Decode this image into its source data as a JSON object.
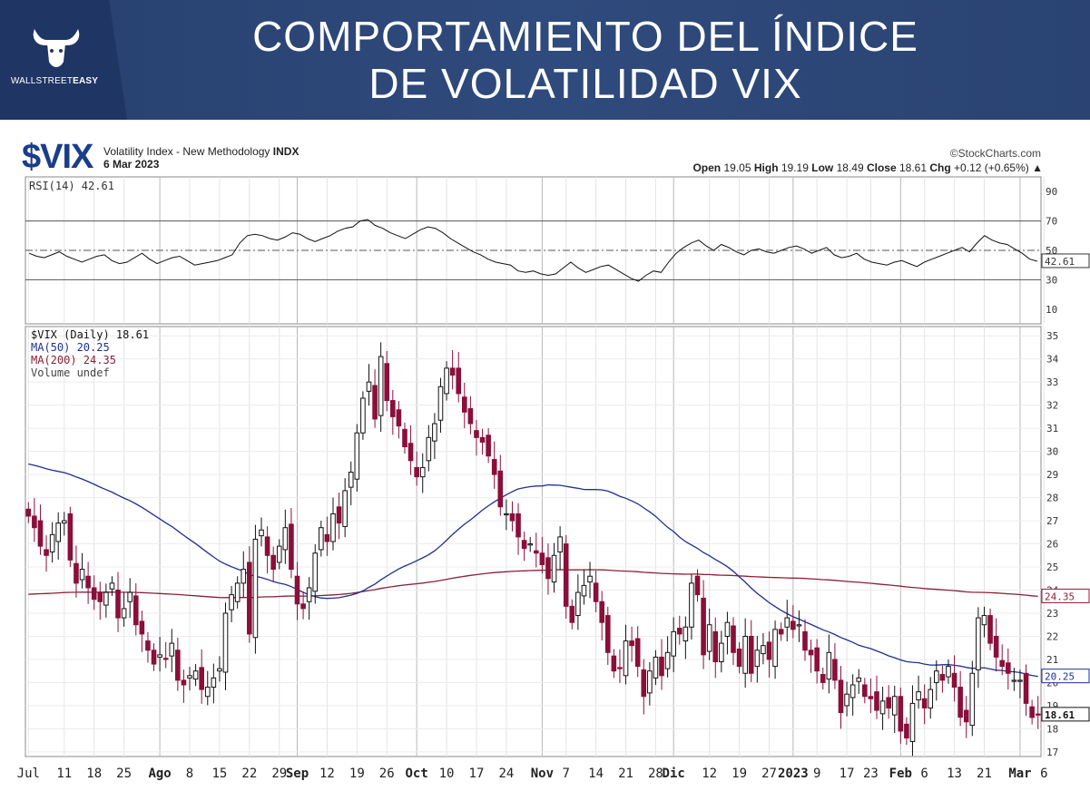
{
  "header": {
    "brand_prefix": "WALLSTREET",
    "brand_suffix": "EASY",
    "title_line1": "COMPORTAMIENTO DEL ÍNDICE",
    "title_line2": "DE VOLATILIDAD VIX"
  },
  "chart_header": {
    "symbol": "$VIX",
    "description": "Volatility Index - New Methodology",
    "exchange": "INDX",
    "date": "6 Mar 2023",
    "credit": "©StockCharts.com",
    "open_label": "Open",
    "open": "19.05",
    "high_label": "High",
    "high": "19.19",
    "low_label": "Low",
    "low": "18.49",
    "close_label": "Close",
    "close": "18.61",
    "chg_label": "Chg",
    "chg": "+0.12 (+0.65%)"
  },
  "colors": {
    "up": "#ffffff",
    "down": "#8a0f3a",
    "ma50": "#1f2f8f",
    "ma200": "#8a1f3a",
    "banner": "#2f4a7c",
    "symbol": "#1a3d8c"
  },
  "chart_data": [
    {
      "type": "line",
      "title": "RSI(14) 42.61",
      "ylim": [
        0,
        100
      ],
      "y_ticks": [
        10,
        30,
        50,
        70,
        90
      ],
      "reference_lines": [
        30,
        50,
        70
      ],
      "last_value_label": "42.61",
      "series": [
        {
          "name": "RSI(14)",
          "values": [
            48,
            46,
            45,
            47,
            49,
            46,
            44,
            42,
            44,
            46,
            47,
            43,
            41,
            42,
            45,
            48,
            44,
            41,
            43,
            45,
            46,
            43,
            40,
            41,
            42,
            43,
            45,
            47,
            55,
            60,
            61,
            60,
            58,
            57,
            59,
            62,
            61,
            58,
            56,
            58,
            60,
            63,
            65,
            66,
            70,
            71,
            67,
            65,
            62,
            60,
            58,
            61,
            64,
            66,
            65,
            62,
            58,
            55,
            52,
            49,
            47,
            44,
            42,
            41,
            40,
            36,
            35,
            36,
            34,
            33,
            34,
            38,
            42,
            38,
            35,
            37,
            39,
            40,
            37,
            34,
            31,
            29,
            33,
            36,
            35,
            42,
            48,
            52,
            55,
            57,
            53,
            50,
            54,
            52,
            49,
            47,
            50,
            51,
            49,
            48,
            50,
            52,
            53,
            51,
            48,
            50,
            52,
            47,
            45,
            46,
            48,
            44,
            42,
            41,
            40,
            42,
            43,
            41,
            39,
            42,
            44,
            46,
            48,
            50,
            52,
            49,
            55,
            60,
            57,
            55,
            54,
            51,
            48,
            44,
            42.61
          ]
        }
      ]
    },
    {
      "type": "candlestick",
      "title": "$VIX (Daily) 18.61",
      "ylim": [
        16.8,
        35.4
      ],
      "y_ticks": [
        17,
        18,
        19,
        20,
        21,
        22,
        23,
        24,
        25,
        26,
        27,
        28,
        29,
        30,
        31,
        32,
        33,
        34,
        35
      ],
      "legend": [
        {
          "label": "$VIX (Daily) 18.61"
        },
        {
          "label": "MA(50) 20.25"
        },
        {
          "label": "MA(200) 24.35"
        },
        {
          "label": "Volume undef"
        }
      ],
      "last_value_labels": [
        "24.35",
        "20.25",
        "18.61"
      ],
      "x_tick_labels": [
        "Jul",
        "11",
        "18",
        "25",
        "Ago",
        "8",
        "15",
        "22",
        "29",
        "Sep",
        "12",
        "19",
        "26",
        "Oct",
        "10",
        "17",
        "24",
        "Nov",
        "7",
        "14",
        "21",
        "28",
        "Dic",
        "12",
        "19",
        "27",
        "2023",
        "9",
        "17",
        "23",
        "Feb",
        "6",
        "13",
        "21",
        "Mar",
        "6"
      ],
      "x_tick_positions": [
        0,
        6,
        11,
        16,
        22,
        27,
        32,
        37,
        42,
        45,
        50,
        55,
        60,
        65,
        70,
        75,
        80,
        86,
        90,
        95,
        100,
        105,
        108,
        114,
        119,
        124,
        128,
        132,
        137,
        141,
        146,
        150,
        155,
        160,
        166,
        170
      ],
      "close": [
        27.2,
        26.7,
        25.9,
        25.5,
        26.4,
        26.9,
        27.0,
        25.3,
        24.3,
        24.9,
        24.1,
        23.6,
        23.5,
        23.9,
        24.3,
        22.8,
        23.2,
        23.9,
        22.5,
        22.1,
        21.4,
        20.8,
        21.2,
        21.0,
        21.7,
        20.1,
        19.9,
        20.3,
        20.5,
        19.7,
        19.8,
        20.2,
        20.6,
        23.0,
        23.8,
        24.3,
        24.9,
        22.1,
        26.2,
        26.6,
        25.5,
        24.9,
        25.9,
        26.7,
        24.9,
        23.4,
        23.2,
        24.1,
        25.6,
        26.7,
        26.1,
        27.3,
        26.9,
        28.3,
        29.1,
        30.8,
        32.3,
        33.0,
        31.4,
        34.1,
        32.2,
        31.5,
        31.1,
        30.2,
        29.6,
        28.9,
        29.3,
        30.6,
        31.2,
        32.8,
        33.6,
        33.3,
        32.5,
        31.7,
        31.2,
        30.6,
        30.4,
        29.8,
        29.0,
        27.6,
        27.3,
        27.0,
        26.3,
        25.8,
        26.0,
        25.6,
        25.1,
        24.5,
        25.5,
        26.3,
        23.3,
        22.6,
        23.9,
        24.2,
        24.6,
        23.5,
        22.6,
        21.3,
        20.5,
        20.6,
        21.8,
        21.6,
        20.7,
        19.4,
        20.5,
        21.1,
        20.3,
        21.3,
        22.2,
        22.1,
        22.4,
        24.3,
        23.8,
        21.2,
        22.5,
        20.9,
        21.7,
        22.6,
        21.3,
        20.7,
        22.0,
        20.4,
        21.4,
        21.6,
        21.0,
        22.3,
        22.1,
        22.8,
        22.3,
        22.5,
        21.4,
        21.2,
        20.5,
        20.0,
        21.3,
        20.1,
        18.7,
        19.5,
        19.9,
        20.2,
        19.4,
        19.3,
        18.8,
        19.2,
        18.9,
        19.4,
        17.9,
        17.6,
        19.1,
        19.6,
        18.9,
        19.7,
        20.5,
        20.1,
        20.7,
        19.8,
        18.5,
        18.3,
        20.4,
        22.8,
        22.9,
        21.7,
        21.1,
        20.7,
        20.4,
        20.1,
        20.1,
        19.1,
        18.49,
        18.61
      ],
      "series": [
        {
          "name": "MA(50)"
        },
        {
          "name": "MA(200)"
        }
      ]
    }
  ]
}
